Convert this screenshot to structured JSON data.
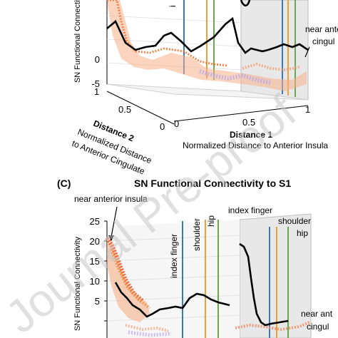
{
  "panel_b": {
    "ylabel": "SN Functional Connectivity",
    "ylabel_top": "SN Functional Connectivity",
    "z_ticks": [
      "0",
      "-5"
    ],
    "x_ticks": [
      "0",
      "0.5",
      "1"
    ],
    "y_ticks": [
      "1",
      "0.5",
      "0"
    ],
    "xlabel": "Distance 1",
    "xlabel_sub": "Normalized Distance to Anterior Insula",
    "ylabel_depth": "Distance 2",
    "ylabel_depth_sub1": "Normalized Distance",
    "ylabel_depth_sub2": "to Anterior Cingulate",
    "annot_top": "i",
    "annot_near1": "near anter",
    "annot_near2": "cingul"
  },
  "panel_c": {
    "letter": "(C)",
    "title": "SN Functional Connectivity to S1",
    "ylabel": "SN Functional Connectivity",
    "z_ticks": [
      "25",
      "20",
      "15",
      "10",
      "5"
    ],
    "annot_insula": "near anterior insula",
    "line_labels_left": [
      "index finger",
      "shoulder",
      "hip"
    ],
    "line_labels_right": [
      "index finger",
      "shoulder",
      "hip"
    ],
    "annot_near1": "near ant",
    "annot_near2": "cingul"
  },
  "watermark": "Journal Pre-proof",
  "colors": {
    "index_finger": "#3a78b8",
    "shoulder": "#e8a23a",
    "hip": "#6aa84f",
    "black_curve": "#000000",
    "cloud_warm": "#f08a4a",
    "cloud_cool": "#b8a8e8"
  },
  "chart_data": [
    {
      "type": "line",
      "panel": "B",
      "zlim": [
        -5,
        20
      ],
      "xlim": [
        0,
        1
      ],
      "ylim": [
        0,
        1
      ],
      "series": [
        {
          "x": [
            0.0,
            0.1,
            0.2,
            0.3,
            0.4,
            0.5,
            0.6,
            0.7,
            0.8,
            0.9,
            1.0
          ],
          "values": [
            18,
            10,
            6,
            8,
            5,
            9,
            3,
            5,
            4,
            6,
            2
          ]
        }
      ]
    },
    {
      "type": "line",
      "panel": "C",
      "zlim": [
        5,
        25
      ],
      "series": [
        {
          "x": [
            0.0,
            0.1,
            0.2,
            0.3,
            0.4,
            0.5,
            0.6,
            0.7,
            0.8,
            0.9,
            1.0
          ],
          "values": [
            20,
            13,
            9,
            7,
            8,
            7,
            12,
            6,
            5,
            6,
            6
          ]
        }
      ]
    }
  ]
}
